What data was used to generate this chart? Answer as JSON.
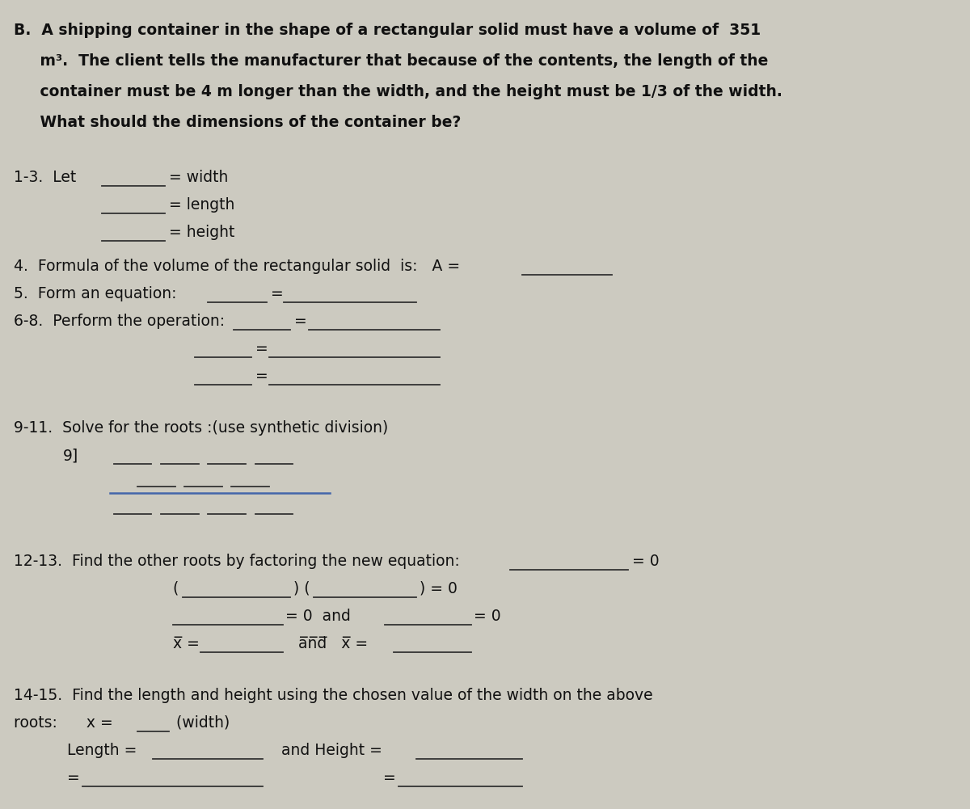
{
  "bg_color": "#cccac0",
  "text_color": "#111111",
  "line_color": "#333333",
  "blue_line_color": "#4466aa",
  "fs": 13.5,
  "fs_title": 13.5,
  "title_lines": [
    "B.  A shipping container in the shape of a rectangular solid must have a volume of  351",
    "     m³.  The client tells the manufacturer that because of the contents, the length of the",
    "     container must be 4 m longer than the width, and the height must be 1/3 of the width.",
    "     What should the dimensions of the container be?"
  ]
}
